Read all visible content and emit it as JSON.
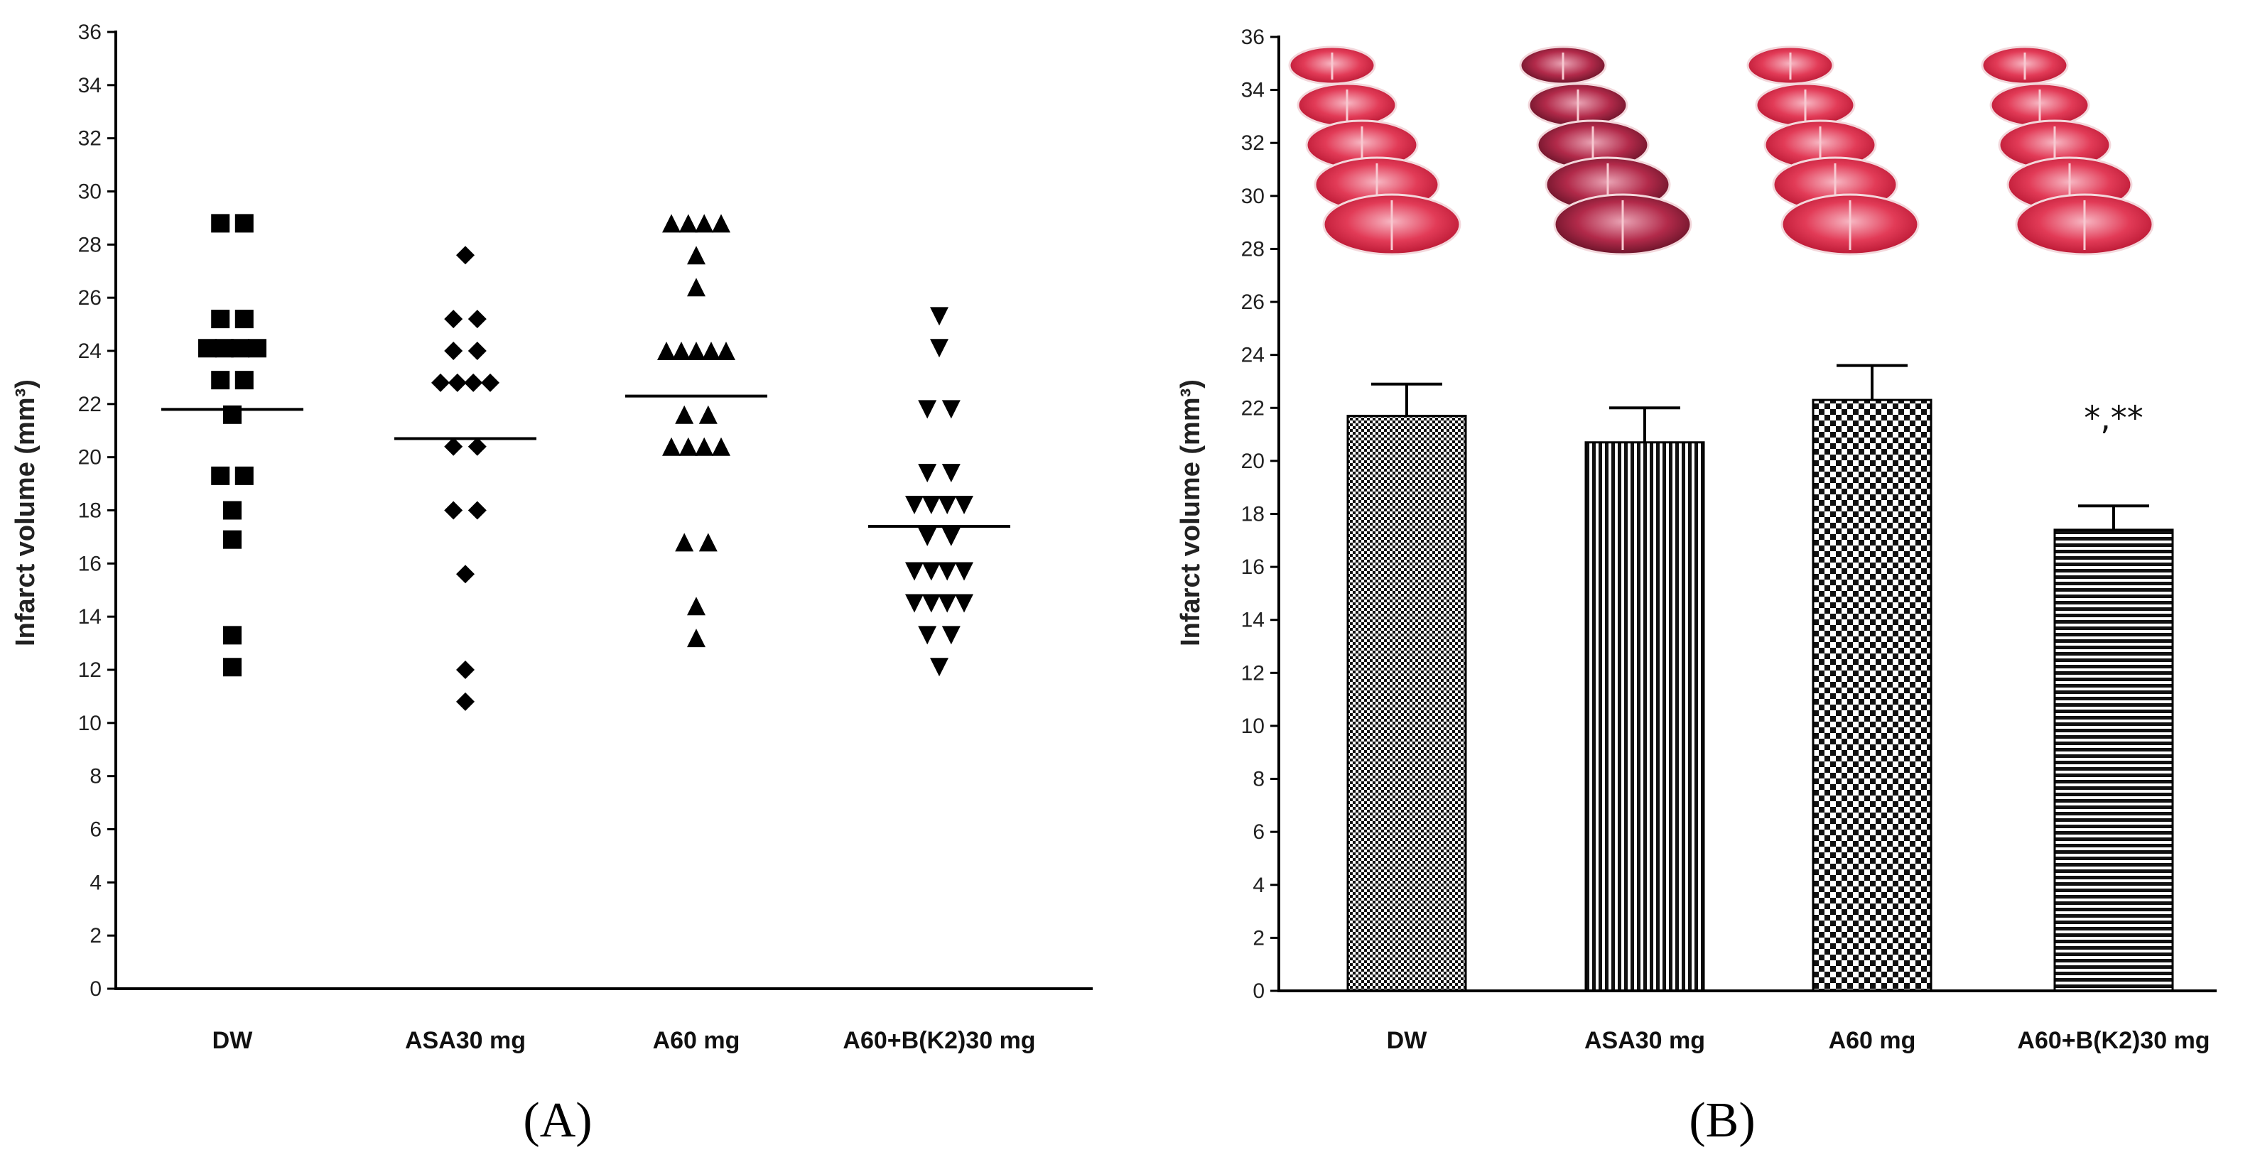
{
  "chart_data": [
    {
      "type": "scatter",
      "panel_label": "(A)",
      "ylabel": "Infarct volume (mm³)",
      "ylim": [
        0,
        36
      ],
      "yticks": [
        0,
        2,
        4,
        6,
        8,
        10,
        12,
        14,
        16,
        18,
        20,
        22,
        24,
        26,
        28,
        30,
        32,
        34,
        36
      ],
      "categories": [
        "DW",
        "ASA30 mg",
        "A60 mg",
        "A60+B(K2)30 mg"
      ],
      "series": [
        {
          "name": "DW",
          "marker": "square",
          "mean": 21.8,
          "points": [
            [
              -0.12,
              28.8
            ],
            [
              0.12,
              28.8
            ],
            [
              -0.12,
              25.2
            ],
            [
              0.12,
              25.2
            ],
            [
              -0.25,
              24.1
            ],
            [
              -0.08,
              24.1
            ],
            [
              0.08,
              24.1
            ],
            [
              0.25,
              24.1
            ],
            [
              -0.12,
              22.9
            ],
            [
              0.12,
              22.9
            ],
            [
              0,
              21.6
            ],
            [
              -0.12,
              19.3
            ],
            [
              0.12,
              19.3
            ],
            [
              0,
              18
            ],
            [
              0,
              16.9
            ],
            [
              0,
              13.3
            ],
            [
              0,
              12.1
            ]
          ]
        },
        {
          "name": "ASA30 mg",
          "marker": "diamond",
          "mean": 20.7,
          "points": [
            [
              0,
              27.6
            ],
            [
              -0.12,
              25.2
            ],
            [
              0.12,
              25.2
            ],
            [
              -0.12,
              24
            ],
            [
              0.12,
              24
            ],
            [
              -0.25,
              22.8
            ],
            [
              -0.08,
              22.8
            ],
            [
              0.08,
              22.8
            ],
            [
              0.25,
              22.8
            ],
            [
              -0.12,
              20.4
            ],
            [
              0.12,
              20.4
            ],
            [
              -0.12,
              18
            ],
            [
              0.12,
              18
            ],
            [
              0,
              15.6
            ],
            [
              0,
              12
            ],
            [
              0,
              10.8
            ]
          ]
        },
        {
          "name": "A60 mg",
          "marker": "triangle-up",
          "mean": 22.3,
          "points": [
            [
              -0.25,
              28.8
            ],
            [
              -0.08,
              28.8
            ],
            [
              0.08,
              28.8
            ],
            [
              0.25,
              28.8
            ],
            [
              0,
              27.6
            ],
            [
              0,
              26.4
            ],
            [
              -0.3,
              24
            ],
            [
              -0.15,
              24
            ],
            [
              0,
              24
            ],
            [
              0.15,
              24
            ],
            [
              0.3,
              24
            ],
            [
              -0.12,
              21.6
            ],
            [
              0.12,
              21.6
            ],
            [
              -0.25,
              20.4
            ],
            [
              -0.08,
              20.4
            ],
            [
              0.08,
              20.4
            ],
            [
              0.25,
              20.4
            ],
            [
              -0.12,
              16.8
            ],
            [
              0.12,
              16.8
            ],
            [
              0,
              14.4
            ],
            [
              0,
              13.2
            ]
          ]
        },
        {
          "name": "A60+B(K2)30 mg",
          "marker": "triangle-down",
          "mean": 17.4,
          "points": [
            [
              0,
              25.3
            ],
            [
              0,
              24.1
            ],
            [
              -0.12,
              21.8
            ],
            [
              0.12,
              21.8
            ],
            [
              -0.12,
              19.4
            ],
            [
              0.12,
              19.4
            ],
            [
              -0.25,
              18.2
            ],
            [
              -0.08,
              18.2
            ],
            [
              0.08,
              18.2
            ],
            [
              0.25,
              18.2
            ],
            [
              -0.12,
              17
            ],
            [
              0.12,
              17
            ],
            [
              -0.25,
              15.7
            ],
            [
              -0.08,
              15.7
            ],
            [
              0.08,
              15.7
            ],
            [
              0.25,
              15.7
            ],
            [
              -0.25,
              14.5
            ],
            [
              -0.08,
              14.5
            ],
            [
              0.08,
              14.5
            ],
            [
              0.25,
              14.5
            ],
            [
              -0.12,
              13.3
            ],
            [
              0.12,
              13.3
            ],
            [
              0,
              12.1
            ]
          ]
        }
      ]
    },
    {
      "type": "bar",
      "panel_label": "(B)",
      "ylabel": "Infarct volume (mm³)",
      "ylim": [
        0,
        36
      ],
      "yticks": [
        0,
        2,
        4,
        6,
        8,
        10,
        12,
        14,
        16,
        18,
        20,
        22,
        24,
        26,
        28,
        30,
        32,
        34,
        36
      ],
      "categories": [
        "DW",
        "ASA30 mg",
        "A60 mg",
        "A60+B(K2)30 mg"
      ],
      "values": [
        21.7,
        20.7,
        22.3,
        17.4
      ],
      "errors": [
        1.2,
        1.3,
        1.3,
        0.9
      ],
      "patterns": [
        "fine-check",
        "vertical-stripes",
        "coarse-check",
        "horizontal-stripes"
      ],
      "annotations": [
        {
          "category": "A60+B(K2)30 mg",
          "text": "*,**"
        }
      ],
      "images": [
        "TTC-stained coronal brain slices, DW",
        "TTC-stained coronal brain slices, ASA30 mg",
        "TTC-stained coronal brain slices, A60 mg",
        "TTC-stained coronal brain slices, A60+B(K2)30 mg"
      ]
    }
  ]
}
